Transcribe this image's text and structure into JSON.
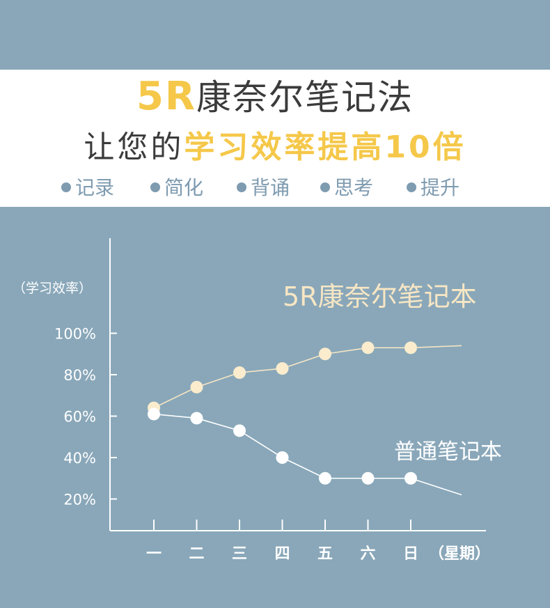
{
  "header": {
    "title_highlight": "5R",
    "title_rest": "康奈尔笔记法",
    "subtitle_prefix": "让您的",
    "subtitle_highlight": "学习效率提高10倍",
    "bullets": [
      "记录",
      "简化",
      "背诵",
      "思考",
      "提升"
    ]
  },
  "colors": {
    "background": "#89a7b9",
    "highlight": "#f5c84a",
    "series_5r": "#f7e6c4",
    "series_normal": "#ffffff"
  },
  "chart_data": {
    "type": "line",
    "ylabel": "（学习效率）",
    "xlabel": "（星期）",
    "categories": [
      "一",
      "二",
      "三",
      "四",
      "五",
      "六",
      "日"
    ],
    "yticks": [
      20,
      40,
      60,
      80,
      100
    ],
    "ytick_labels": [
      "20%",
      "40%",
      "60%",
      "80%",
      "100%"
    ],
    "ylim": [
      0,
      115
    ],
    "series": [
      {
        "name": "5R康奈尔笔记本",
        "values": [
          64,
          74,
          81,
          83,
          90,
          93,
          93
        ],
        "trail": 94
      },
      {
        "name": "普通笔记本",
        "values": [
          61,
          59,
          53,
          40,
          30,
          30,
          30
        ],
        "trail": 22
      }
    ]
  }
}
